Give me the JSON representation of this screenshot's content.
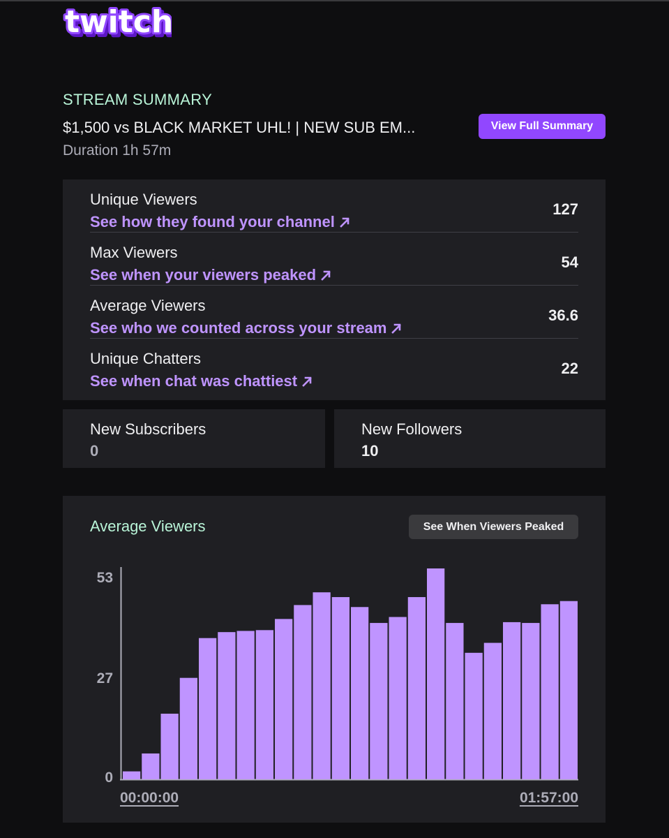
{
  "brand": {
    "logo_text": "twitch",
    "color": "#9147ff"
  },
  "summary": {
    "heading": "STREAM SUMMARY",
    "title": "$1,500 vs BLACK MARKET UHL! | NEW SUB EM...",
    "duration": "Duration 1h 57m",
    "full_summary_button": "View Full Summary"
  },
  "stats": [
    {
      "label": "Unique Viewers",
      "link": "See how they found your channel",
      "value": "127"
    },
    {
      "label": "Max Viewers",
      "link": "See when your viewers peaked",
      "value": "54"
    },
    {
      "label": "Average Viewers",
      "link": "See who we counted across your stream",
      "value": "36.6"
    },
    {
      "label": "Unique Chatters",
      "link": "See when chat was chattiest",
      "value": "22"
    }
  ],
  "subscribers": {
    "label": "New Subscribers",
    "value": "0"
  },
  "followers": {
    "label": "New Followers",
    "value": "10"
  },
  "chart": {
    "title": "Average Viewers",
    "peak_button": "See When Viewers Peaked",
    "colors": {
      "bar": "#bf94ff",
      "axis": "#adadb8",
      "heading": "#b9f5d8"
    }
  },
  "chart_data": {
    "type": "bar",
    "title": "Average Viewers",
    "x_start_label": "00:00:00",
    "x_end_label": "01:57:00",
    "yticks": [
      "53",
      "27",
      "0"
    ],
    "ylim": [
      0,
      53
    ],
    "values": [
      2,
      6.5,
      16.5,
      25.5,
      35.5,
      37,
      37.3,
      37.5,
      40.3,
      43.8,
      47,
      45.8,
      43.3,
      39.3,
      40.8,
      45.8,
      53,
      39.3,
      31.8,
      34.3,
      39.5,
      39.3,
      44,
      44.8
    ]
  }
}
